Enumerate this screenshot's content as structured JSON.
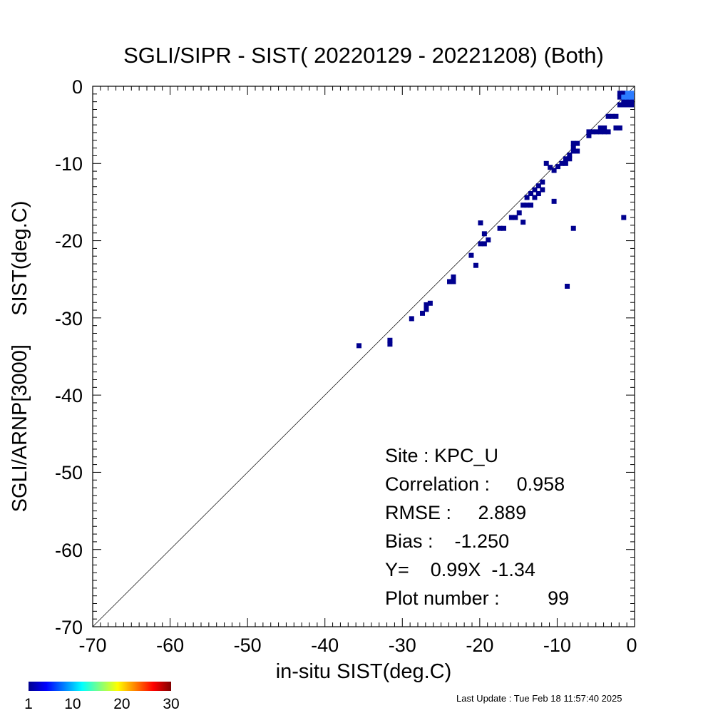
{
  "chart_data": {
    "type": "scatter",
    "title": "SGLI/SIPR - SIST( 20220129 - 20221208) (Both)",
    "xlabel": "in-situ SIST(deg.C)",
    "ylabel": "SGLI/ARNP[3000]     SIST(deg.C)",
    "xlim": [
      -70,
      0
    ],
    "ylim": [
      -70,
      0
    ],
    "xticks": [
      "-70",
      "-60",
      "-50",
      "-40",
      "-30",
      "-20",
      "-10",
      "0"
    ],
    "yticks": [
      "0",
      "-10",
      "-20",
      "-30",
      "-40",
      "-50",
      "-60",
      "-70"
    ],
    "reference_line": "1:1",
    "grid": false,
    "point_color": "#00008f",
    "dense_color": "#2c7bff",
    "points": [
      [
        -35.6,
        -33.6
      ],
      [
        -31.6,
        -32.9
      ],
      [
        -31.6,
        -33.4
      ],
      [
        -28.8,
        -30.1
      ],
      [
        -27.4,
        -29.4
      ],
      [
        -26.9,
        -28.9
      ],
      [
        -26.9,
        -28.3
      ],
      [
        -26.4,
        -28.1
      ],
      [
        -23.9,
        -25.3
      ],
      [
        -23.4,
        -25.3
      ],
      [
        -23.4,
        -24.7
      ],
      [
        -21.1,
        -21.9
      ],
      [
        -20.5,
        -23.2
      ],
      [
        -19.9,
        -17.7
      ],
      [
        -19.9,
        -20.4
      ],
      [
        -19.4,
        -20.4
      ],
      [
        -19.4,
        -19.1
      ],
      [
        -18.9,
        -19.9
      ],
      [
        -17.4,
        -18.4
      ],
      [
        -16.9,
        -18.4
      ],
      [
        -15.9,
        -17.0
      ],
      [
        -15.4,
        -17.0
      ],
      [
        -14.9,
        -16.4
      ],
      [
        -14.4,
        -15.4
      ],
      [
        -14.4,
        -17.6
      ],
      [
        -13.9,
        -15.4
      ],
      [
        -13.9,
        -14.4
      ],
      [
        -13.4,
        -15.4
      ],
      [
        -13.4,
        -13.9
      ],
      [
        -12.9,
        -14.4
      ],
      [
        -12.9,
        -13.4
      ],
      [
        -12.4,
        -13.9
      ],
      [
        -12.4,
        -12.9
      ],
      [
        -11.9,
        -13.4
      ],
      [
        -11.9,
        -12.4
      ],
      [
        -11.4,
        -10.0
      ],
      [
        -10.9,
        -10.5
      ],
      [
        -10.4,
        -10.9
      ],
      [
        -10.4,
        -14.9
      ],
      [
        -9.9,
        -10.4
      ],
      [
        -9.4,
        -10.0
      ],
      [
        -8.9,
        -10.0
      ],
      [
        -8.9,
        -9.4
      ],
      [
        -8.7,
        -25.9
      ],
      [
        -8.4,
        -9.4
      ],
      [
        -8.4,
        -8.9
      ],
      [
        -7.9,
        -18.4
      ],
      [
        -7.9,
        -8.4
      ],
      [
        -7.9,
        -7.9
      ],
      [
        -7.9,
        -7.4
      ],
      [
        -7.4,
        -8.4
      ],
      [
        -7.4,
        -7.4
      ],
      [
        -5.9,
        -6.4
      ],
      [
        -5.9,
        -5.9
      ],
      [
        -5.4,
        -5.9
      ],
      [
        -4.9,
        -5.9
      ],
      [
        -4.4,
        -5.4
      ],
      [
        -4.4,
        -5.9
      ],
      [
        -3.9,
        -5.4
      ],
      [
        -3.9,
        -5.9
      ],
      [
        -3.4,
        -5.9
      ],
      [
        -3.4,
        -3.9
      ],
      [
        -2.9,
        -3.9
      ],
      [
        -2.4,
        -3.9
      ],
      [
        -2.4,
        -5.4
      ],
      [
        -1.9,
        -5.4
      ],
      [
        -1.9,
        -2.4
      ],
      [
        -1.9,
        -0.9
      ],
      [
        -1.9,
        -1.4
      ],
      [
        -1.4,
        -1.9
      ],
      [
        -1.4,
        -2.4
      ],
      [
        -1.4,
        -17.0
      ],
      [
        -1.4,
        -0.9
      ],
      [
        -0.9,
        -2.4
      ],
      [
        -0.9,
        -1.9
      ],
      [
        -0.9,
        -1.4
      ],
      [
        -0.4,
        -1.4
      ],
      [
        -0.4,
        -1.9
      ],
      [
        -0.4,
        -2.4
      ]
    ],
    "dense_points": [
      [
        -0.9,
        -0.9
      ],
      [
        -0.9,
        -1.4
      ],
      [
        -0.4,
        -0.9
      ],
      [
        -0.4,
        -1.4
      ],
      [
        -1.4,
        -1.4
      ]
    ],
    "stats": {
      "site": "Site : KPC_U",
      "correlation": "Correlation :     0.958",
      "rmse": "RMSE :     2.889",
      "bias": "Bias :    -1.250",
      "regression": "Y=    0.99X  -1.34",
      "plot_number": "Plot number :         99"
    },
    "colorbar": {
      "colors": [
        "#00008f",
        "#0000ff",
        "#0080ff",
        "#00ffff",
        "#80ff80",
        "#ffff00",
        "#ff8000",
        "#ff0000",
        "#800000"
      ],
      "range": [
        1,
        30
      ],
      "labels": [
        "1",
        "10",
        "20",
        "30"
      ]
    }
  },
  "footer": {
    "last_update": "Last Update : Tue Feb 18 11:57:40 2025"
  }
}
